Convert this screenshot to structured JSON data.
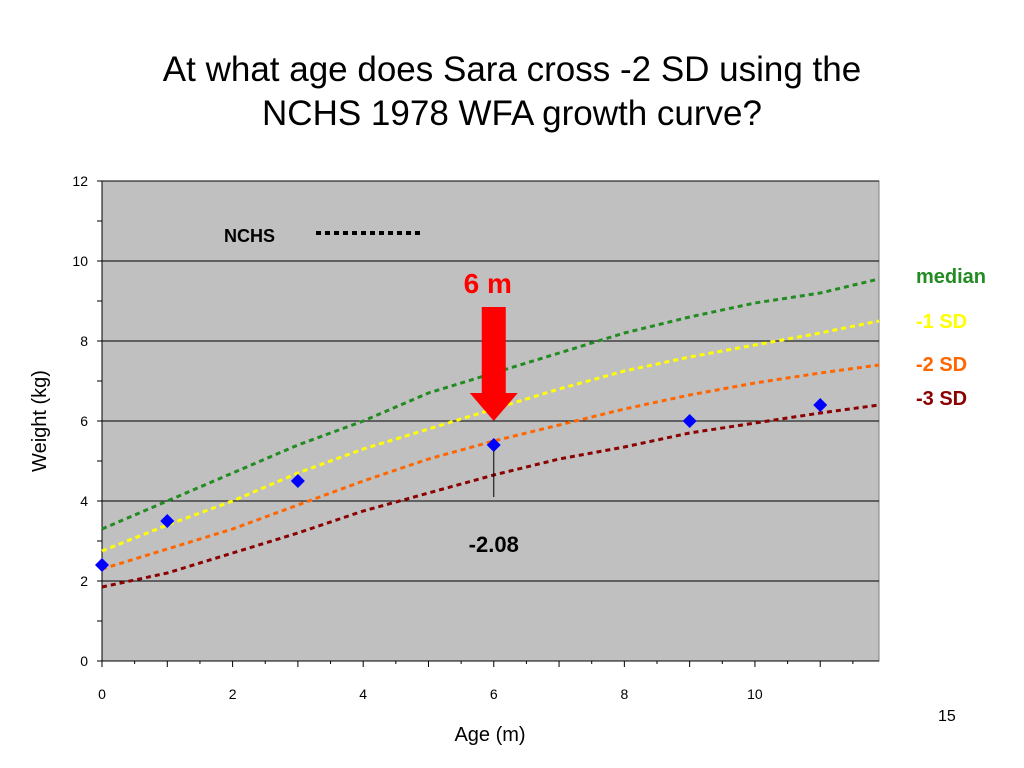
{
  "slide": {
    "title_line1": "At what age does Sara cross -2 SD using the",
    "title_line2": "NCHS 1978 WFA growth curve?",
    "page_number": "15"
  },
  "chart_data": {
    "type": "line",
    "xlabel": "Age (m)",
    "ylabel": "Weight (kg)",
    "xlim": [
      0,
      11.9
    ],
    "ylim": [
      0,
      12
    ],
    "x_ticks": [
      0,
      2,
      4,
      6,
      8,
      10
    ],
    "y_ticks": [
      0,
      2,
      4,
      6,
      8,
      10,
      12
    ],
    "grid": "horizontal major gridlines",
    "plot_background": "#c0c0c0",
    "series": [
      {
        "name": "median",
        "color": "#228b22",
        "dash": "dotted",
        "x": [
          0,
          1,
          2,
          3,
          4,
          5,
          6,
          7,
          8,
          9,
          10,
          11,
          11.9
        ],
        "y": [
          3.3,
          4.0,
          4.7,
          5.4,
          6.0,
          6.7,
          7.2,
          7.7,
          8.2,
          8.6,
          8.95,
          9.2,
          9.55
        ]
      },
      {
        "name": "-1 SD",
        "color": "#ffff00",
        "dash": "dotted",
        "x": [
          0,
          1,
          2,
          3,
          4,
          5,
          6,
          7,
          8,
          9,
          10,
          11,
          11.9
        ],
        "y": [
          2.75,
          3.4,
          4.0,
          4.7,
          5.3,
          5.8,
          6.3,
          6.8,
          7.25,
          7.6,
          7.9,
          8.2,
          8.5
        ]
      },
      {
        "name": "-2 SD",
        "color": "#ff6600",
        "dash": "dotted",
        "x": [
          0,
          1,
          2,
          3,
          4,
          5,
          6,
          7,
          8,
          9,
          10,
          11,
          11.9
        ],
        "y": [
          2.3,
          2.8,
          3.3,
          3.9,
          4.5,
          5.05,
          5.5,
          5.9,
          6.3,
          6.65,
          6.95,
          7.2,
          7.4
        ]
      },
      {
        "name": "-3 SD",
        "color": "#8b0000",
        "dash": "dotted",
        "x": [
          0,
          1,
          2,
          3,
          4,
          5,
          6,
          7,
          8,
          9,
          10,
          11,
          11.9
        ],
        "y": [
          1.85,
          2.2,
          2.7,
          3.2,
          3.75,
          4.2,
          4.65,
          5.05,
          5.35,
          5.7,
          5.95,
          6.2,
          6.4
        ]
      }
    ],
    "observations": {
      "marker": "diamond",
      "color": "#0000ff",
      "x": [
        0,
        1,
        3,
        6,
        9,
        11
      ],
      "y": [
        2.4,
        3.5,
        4.5,
        5.4,
        6.0,
        6.4
      ]
    },
    "legend_key": {
      "label": "NCHS",
      "color": "#000000"
    },
    "annotations": {
      "arrow": {
        "label": "6 m",
        "color": "#ff0000",
        "x": 6,
        "tip_y": 6.0,
        "top_y": 8.85
      },
      "callout": {
        "label": "-2.08",
        "x": 6,
        "y_from": 5.25,
        "y_to": 4.1
      }
    }
  }
}
